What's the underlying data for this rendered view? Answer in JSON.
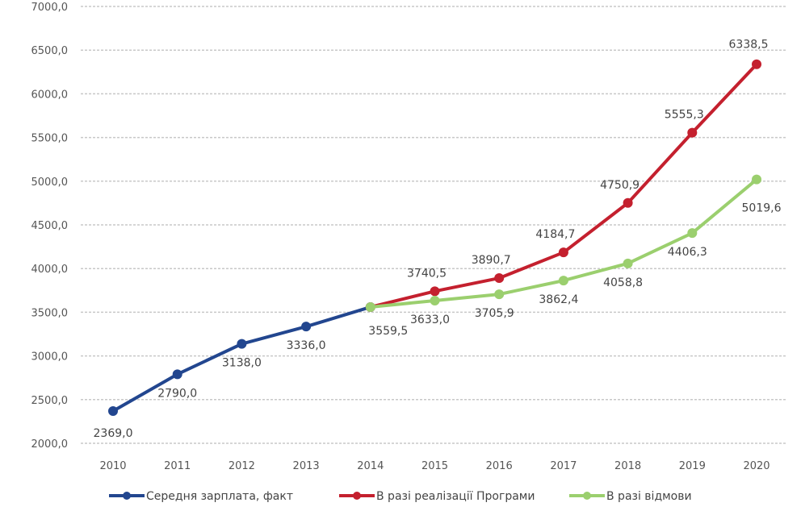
{
  "chart_data": {
    "type": "line",
    "title": "",
    "xlabel": "",
    "ylabel": "",
    "ylim": [
      2000,
      7000
    ],
    "yticks": [
      "2000,0",
      "2500,0",
      "3000,0",
      "3500,0",
      "4000,0",
      "4500,0",
      "5000,0",
      "5500,0",
      "6000,0",
      "6500,0",
      "7000,0"
    ],
    "ytick_values": [
      2000,
      2500,
      3000,
      3500,
      4000,
      4500,
      5000,
      5500,
      6000,
      6500,
      7000
    ],
    "categories": [
      "2010",
      "2011",
      "2012",
      "2013",
      "2014",
      "2015",
      "2016",
      "2017",
      "2018",
      "2019",
      "2020"
    ],
    "grid": true,
    "legend_position": "bottom",
    "series": [
      {
        "name": "Середня зарплата, факт",
        "color": "#22468f",
        "values": [
          2369.0,
          2790.0,
          3138.0,
          3336.0,
          3559.5,
          null,
          null,
          null,
          null,
          null,
          null
        ],
        "labels": [
          "2369,0",
          "2790,0",
          "3138,0",
          "3336,0",
          "3559,5",
          null,
          null,
          null,
          null,
          null,
          null
        ]
      },
      {
        "name": "В разі реалізації Програми",
        "color": "#c4202e",
        "values": [
          null,
          null,
          null,
          null,
          3559.5,
          3740.5,
          3890.7,
          4184.7,
          4750.9,
          5555.3,
          6338.5
        ],
        "labels": [
          null,
          null,
          null,
          null,
          null,
          "3740,5",
          "3890,7",
          "4184,7",
          "4750,9",
          "5555,3",
          "6338,5"
        ]
      },
      {
        "name": "В разі відмови",
        "color": "#9bcf6e",
        "values": [
          null,
          null,
          null,
          null,
          3559.5,
          3633.0,
          3705.9,
          3862.4,
          4058.8,
          4406.3,
          5019.6
        ],
        "labels": [
          null,
          null,
          null,
          null,
          null,
          "3633,0",
          "3705,9",
          "3862,4",
          "4058,8",
          "4406,3",
          "5019,6"
        ]
      }
    ]
  }
}
